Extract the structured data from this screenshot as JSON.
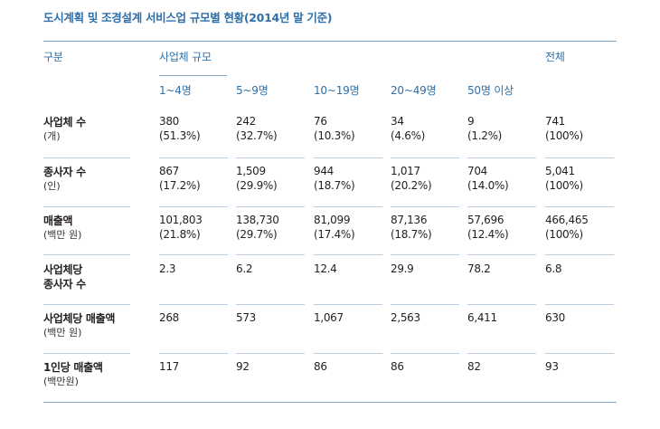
{
  "title": "도시계획 및 조경설계 서비스업 규모별 현황(2014년 말 기준)",
  "header": {
    "category": "구분",
    "size_group": "사업체 규모",
    "total": "전체",
    "sizes": [
      "1~4명",
      "5~9명",
      "10~19명",
      "20~49명",
      "50명 이상"
    ]
  },
  "rows": [
    {
      "label": "사업체 수",
      "label2": "",
      "unit": "(개)",
      "values": [
        {
          "v": "380",
          "p": "(51.3%)"
        },
        {
          "v": "242",
          "p": "(32.7%)"
        },
        {
          "v": "76",
          "p": "(10.3%)"
        },
        {
          "v": "34",
          "p": "(4.6%)"
        },
        {
          "v": "9",
          "p": "(1.2%)"
        },
        {
          "v": "741",
          "p": "(100%)"
        }
      ]
    },
    {
      "label": "종사자 수",
      "label2": "",
      "unit": "(인)",
      "values": [
        {
          "v": "867",
          "p": "(17.2%)"
        },
        {
          "v": "1,509",
          "p": "(29.9%)"
        },
        {
          "v": "944",
          "p": "(18.7%)"
        },
        {
          "v": "1,017",
          "p": "(20.2%)"
        },
        {
          "v": "704",
          "p": "(14.0%)"
        },
        {
          "v": "5,041",
          "p": "(100%)"
        }
      ]
    },
    {
      "label": "매출액",
      "label2": "",
      "unit": "(백만 원)",
      "values": [
        {
          "v": "101,803",
          "p": "(21.8%)"
        },
        {
          "v": "138,730",
          "p": "(29.7%)"
        },
        {
          "v": "81,099",
          "p": "(17.4%)"
        },
        {
          "v": "87,136",
          "p": "(18.7%)"
        },
        {
          "v": "57,696",
          "p": "(12.4%)"
        },
        {
          "v": "466,465",
          "p": "(100%)"
        }
      ]
    },
    {
      "label": "사업체당",
      "label2": "종사자 수",
      "unit": "",
      "values": [
        {
          "v": "2.3",
          "p": ""
        },
        {
          "v": "6.2",
          "p": ""
        },
        {
          "v": "12.4",
          "p": ""
        },
        {
          "v": "29.9",
          "p": ""
        },
        {
          "v": "78.2",
          "p": ""
        },
        {
          "v": "6.8",
          "p": ""
        }
      ]
    },
    {
      "label": "사업체당 매출액",
      "label2": "",
      "unit": "(백만 원)",
      "values": [
        {
          "v": "268",
          "p": ""
        },
        {
          "v": "573",
          "p": ""
        },
        {
          "v": "1,067",
          "p": ""
        },
        {
          "v": "2,563",
          "p": ""
        },
        {
          "v": "6,411",
          "p": ""
        },
        {
          "v": "630",
          "p": ""
        }
      ]
    },
    {
      "label": "1인당 매출액",
      "label2": "",
      "unit": "(백만원)",
      "values": [
        {
          "v": "117",
          "p": ""
        },
        {
          "v": "92",
          "p": ""
        },
        {
          "v": "86",
          "p": ""
        },
        {
          "v": "86",
          "p": ""
        },
        {
          "v": "82",
          "p": ""
        },
        {
          "v": "93",
          "p": ""
        }
      ]
    }
  ]
}
